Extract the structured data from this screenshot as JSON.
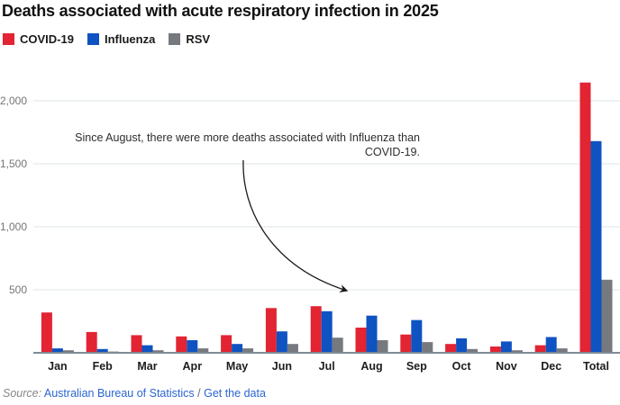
{
  "title": "Deaths associated with acute respiratory infection in 2025",
  "legend": {
    "items": [
      {
        "label": "COVID-19",
        "color": "#e22433"
      },
      {
        "label": "Influenza",
        "color": "#0f53c2"
      },
      {
        "label": "RSV",
        "color": "#76797e"
      }
    ]
  },
  "annotation": {
    "text": "Since August, there were more deaths associated with Influenza than COVID-19."
  },
  "chart_data": {
    "type": "bar",
    "title": "Deaths associated with acute respiratory infection in 2025",
    "categories": [
      "Jan",
      "Feb",
      "Mar",
      "Apr",
      "May",
      "Jun",
      "Jul",
      "Aug",
      "Sep",
      "Oct",
      "Nov",
      "Dec",
      "Total"
    ],
    "series": [
      {
        "name": "COVID-19",
        "color": "#e22433",
        "values": [
          320,
          165,
          140,
          130,
          140,
          355,
          370,
          200,
          145,
          70,
          50,
          60,
          2145
        ]
      },
      {
        "name": "Influenza",
        "color": "#0f53c2",
        "values": [
          35,
          30,
          60,
          100,
          70,
          170,
          330,
          295,
          260,
          115,
          90,
          125,
          1680
        ]
      },
      {
        "name": "RSV",
        "color": "#76797e",
        "values": [
          20,
          10,
          20,
          35,
          35,
          70,
          120,
          100,
          85,
          30,
          20,
          35,
          580
        ]
      }
    ],
    "xlabel": "",
    "ylabel": "",
    "ylim": [
      0,
      2200
    ],
    "yticks": [
      500,
      1000,
      1500,
      2000
    ],
    "ytick_labels": [
      "500",
      "1,000",
      "1,500",
      "2,000"
    ],
    "grid": true,
    "legend_position": "top-left",
    "annotation_arrow": "from annotation text down-right to Jul/Aug bars"
  },
  "footer": {
    "source_label": "Source:",
    "source_link_label": "Australian Bureau of Statistics",
    "separator": "/",
    "data_link_label": "Get the data",
    "link_color": "#2b65d1"
  }
}
